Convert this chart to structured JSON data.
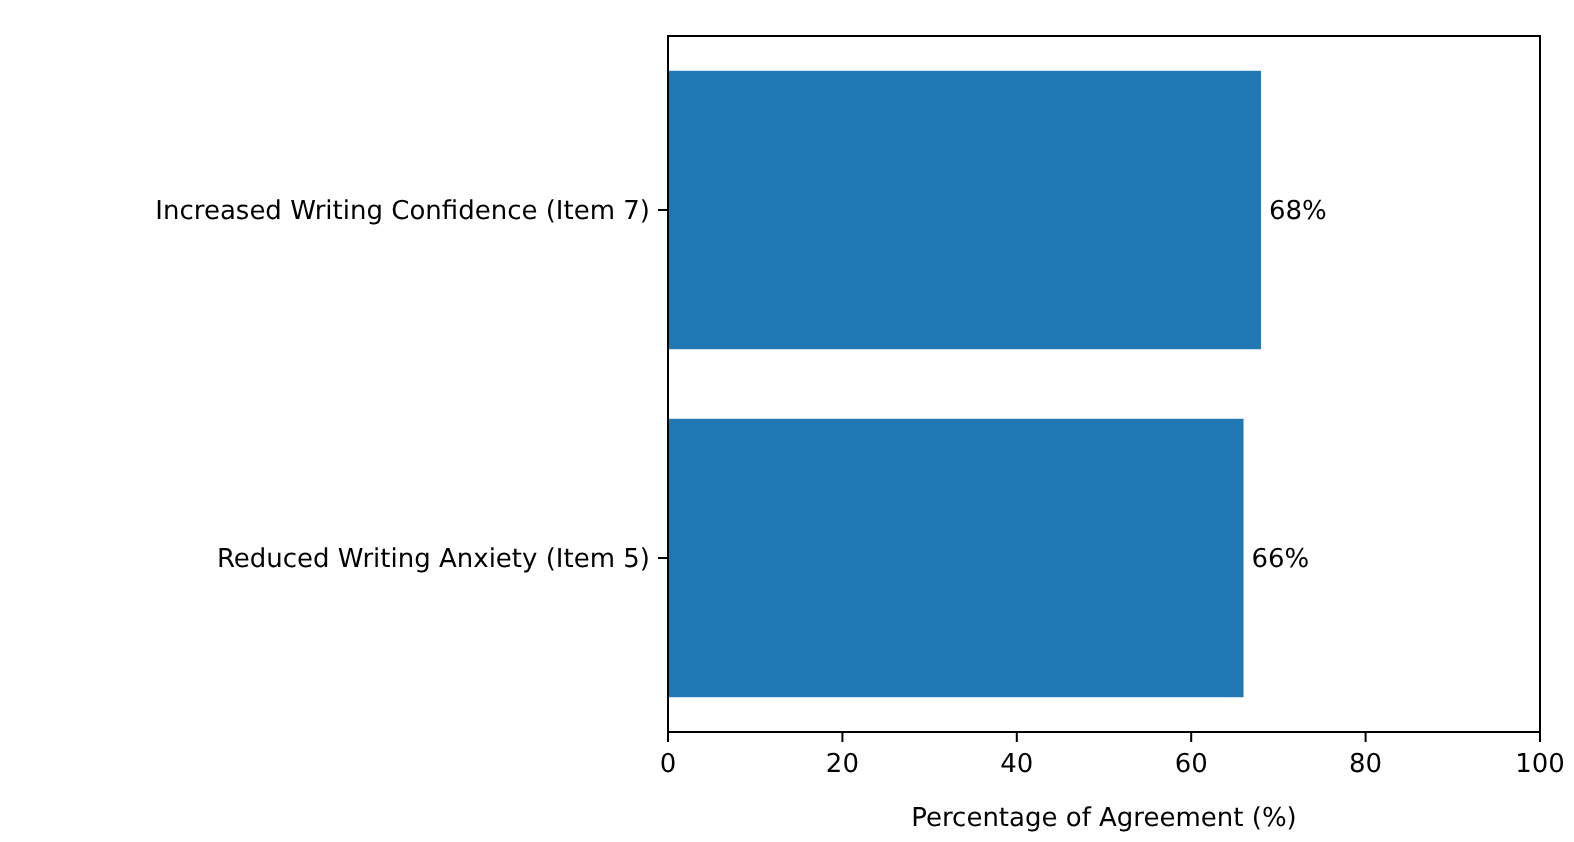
{
  "chart_data": {
    "type": "bar",
    "orientation": "horizontal",
    "categories": [
      "Increased Writing Confidence (Item 7)",
      "Reduced Writing Anxiety (Item 5)"
    ],
    "values": [
      68,
      66
    ],
    "color": "#1f77b4",
    "value_labels": [
      "68%",
      "66%"
    ],
    "xlabel": "Percentage of Agreement (%)",
    "xlim": [
      0,
      100
    ],
    "xticks": [
      0,
      20,
      40,
      60,
      80,
      100
    ],
    "grid": false
  }
}
